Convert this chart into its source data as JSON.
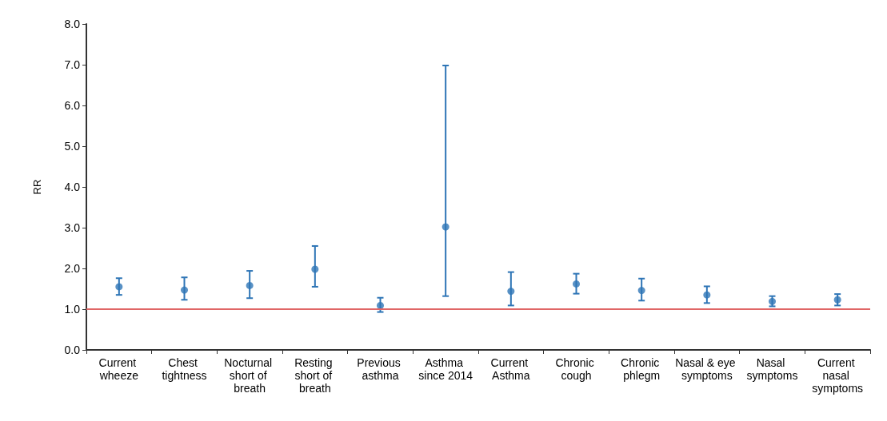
{
  "chart_data": {
    "type": "scatter",
    "ylabel": "RR",
    "categories": [
      "Current wheeze",
      "Chest tightness",
      "Nocturnal short of breath",
      "Resting short of breath",
      "Previous asthma",
      "Asthma since 2014",
      "Current Asthma",
      "Chronic cough",
      "Chronic phlegm",
      "Nasal & eye symptoms",
      "Nasal symptoms",
      "Current nasal symptoms"
    ],
    "series": [
      {
        "color": "#2e75b6",
        "values": [
          1.55,
          1.47,
          1.58,
          1.98,
          1.09,
          3.02,
          1.44,
          1.62,
          1.46,
          1.35,
          1.19,
          1.23
        ],
        "errors": [
          [
            1.35,
            1.76
          ],
          [
            1.23,
            1.78
          ],
          [
            1.27,
            1.94
          ],
          [
            1.55,
            2.55
          ],
          [
            0.93,
            1.28
          ],
          [
            1.32,
            6.98
          ],
          [
            1.09,
            1.91
          ],
          [
            1.38,
            1.87
          ],
          [
            1.21,
            1.75
          ],
          [
            1.15,
            1.56
          ],
          [
            1.07,
            1.32
          ],
          [
            1.09,
            1.37
          ]
        ]
      }
    ],
    "ylim": [
      0,
      8
    ],
    "yticks": [
      {
        "value": 0,
        "label": "0.0"
      },
      {
        "value": 1,
        "label": "1.0"
      },
      {
        "value": 2,
        "label": "2.0"
      },
      {
        "value": 3,
        "label": "3.0"
      },
      {
        "value": 4,
        "label": "4.0"
      },
      {
        "value": 5,
        "label": "5.0"
      },
      {
        "value": 6,
        "label": "6.0"
      },
      {
        "value": 7,
        "label": "7.0"
      },
      {
        "value": 8,
        "label": "8.0"
      }
    ],
    "grid": false,
    "marker": "circle",
    "ref_lines": [
      {
        "axis": "y",
        "value": 1,
        "color": "#e06666",
        "line_style": "solid"
      }
    ]
  }
}
